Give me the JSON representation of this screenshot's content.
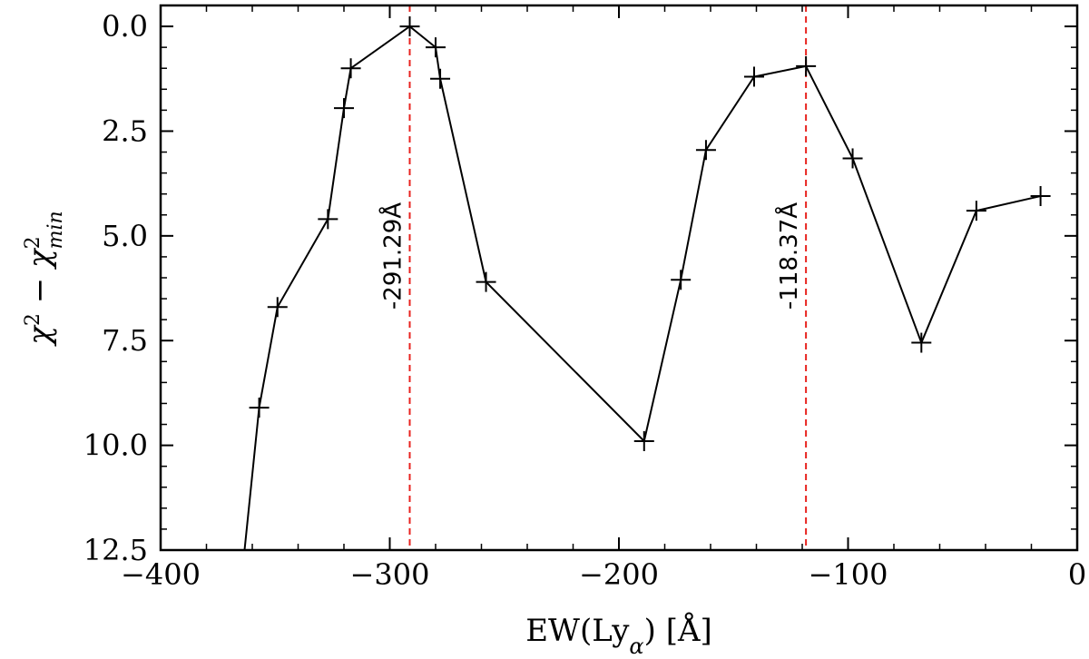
{
  "chart_data": {
    "type": "line",
    "xlabel": "EW(Ly_α) [Å]",
    "ylabel": "χ² − χ²_min",
    "xlim": [
      -400,
      0
    ],
    "ylim": [
      12.5,
      -0.5
    ],
    "y_inverted": true,
    "grid": false,
    "x_ticks": [
      -400,
      -300,
      -200,
      -100,
      0
    ],
    "x_tick_labels": [
      "−400",
      "−300",
      "−200",
      "−100",
      "0"
    ],
    "y_ticks": [
      0,
      2.5,
      5,
      7.5,
      10,
      12.5
    ],
    "y_tick_labels": [
      "0.0",
      "2.5",
      "5.0",
      "7.5",
      "10.0",
      "12.5"
    ],
    "series": [
      {
        "color": "#000000",
        "marker": "+",
        "x": [
          -369,
          -357,
          -349,
          -327,
          -320,
          -317,
          -291.29,
          -280,
          -278,
          -258,
          -189,
          -173,
          -162,
          -141,
          -118.37,
          -98,
          -68,
          -44,
          -16
        ],
        "y": [
          15.5,
          9.1,
          6.7,
          4.6,
          1.95,
          1.0,
          0.0,
          0.5,
          1.25,
          6.1,
          9.9,
          6.05,
          2.95,
          1.2,
          0.95,
          3.15,
          7.55,
          4.4,
          4.05
        ]
      }
    ],
    "vlines": [
      {
        "x": -291.29,
        "label": "-291.29Å",
        "color": "#e8231f"
      },
      {
        "x": -118.37,
        "label": "-118.37Å",
        "color": "#e8231f"
      }
    ]
  }
}
